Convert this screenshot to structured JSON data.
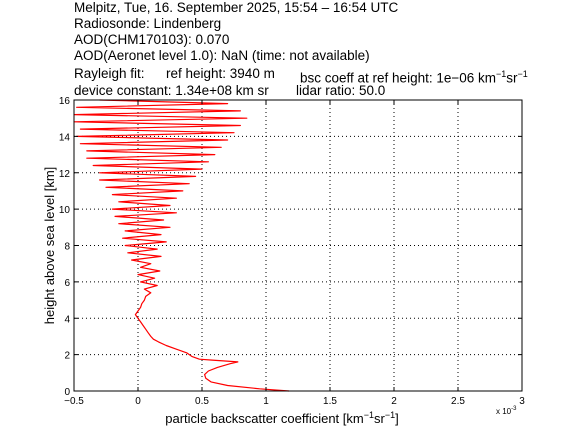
{
  "header": {
    "line1": "Melpitz, Tue, 16. September 2025, 15:54 – 16:54 UTC",
    "line2": "Radiosonde: Lindenberg",
    "line3": "AOD(CHM170103): 0.070",
    "line4": "AOD(Aeronet level 1.0): NaN   (time: not available)",
    "rayleigh_label": "Rayleigh fit:",
    "ref_height": "ref height: 3940 m",
    "bsc_coeff": "bsc coeff at ref height: 1e−06 km",
    "device_constant": "device constant: 1.34e+08 km sr",
    "lidar_ratio": "lidar ratio: 50.0"
  },
  "chart_data": {
    "type": "line",
    "xlabel": "particle backscatter coefficient [km",
    "ylabel": "height above sea level [km]",
    "x_multiplier": "x 10",
    "x_multiplier_exp": "-3",
    "xlim": [
      -0.5,
      3
    ],
    "ylim": [
      0,
      16
    ],
    "xticks": [
      -0.5,
      0,
      0.5,
      1,
      1.5,
      2,
      2.5,
      3
    ],
    "xtick_labels": [
      "−0.5",
      "0",
      "0.5",
      "1",
      "1.5",
      "2",
      "2.5",
      "3"
    ],
    "yticks": [
      0,
      2,
      4,
      6,
      8,
      10,
      12,
      14,
      16
    ],
    "ytick_labels": [
      "0",
      "2",
      "4",
      "6",
      "8",
      "10",
      "12",
      "14",
      "16"
    ],
    "grid": true,
    "series": [
      {
        "color": "#ff0000",
        "points": [
          [
            1.18,
            0.0
          ],
          [
            0.95,
            0.12
          ],
          [
            0.7,
            0.3
          ],
          [
            0.57,
            0.5
          ],
          [
            0.53,
            0.7
          ],
          [
            0.52,
            0.9
          ],
          [
            0.55,
            1.1
          ],
          [
            0.62,
            1.3
          ],
          [
            0.72,
            1.5
          ],
          [
            0.78,
            1.6
          ],
          [
            0.58,
            1.7
          ],
          [
            0.48,
            1.75
          ],
          [
            0.42,
            1.9
          ],
          [
            0.38,
            2.1
          ],
          [
            0.3,
            2.3
          ],
          [
            0.22,
            2.5
          ],
          [
            0.16,
            2.7
          ],
          [
            0.12,
            2.85
          ],
          [
            0.1,
            3.0
          ],
          [
            0.08,
            3.2
          ],
          [
            0.06,
            3.4
          ],
          [
            0.04,
            3.6
          ],
          [
            0.02,
            3.8
          ],
          [
            0.0,
            4.0
          ],
          [
            -0.02,
            4.2
          ],
          [
            0.0,
            4.4
          ],
          [
            0.02,
            4.6
          ],
          [
            0.03,
            4.8
          ],
          [
            0.05,
            5.0
          ],
          [
            0.06,
            5.2
          ],
          [
            0.1,
            5.4
          ],
          [
            0.05,
            5.6
          ],
          [
            0.15,
            5.8
          ],
          [
            0.02,
            6.0
          ],
          [
            0.13,
            6.2
          ],
          [
            0.0,
            6.4
          ],
          [
            0.17,
            6.6
          ],
          [
            0.02,
            6.8
          ],
          [
            0.1,
            7.0
          ],
          [
            -0.05,
            7.2
          ],
          [
            0.18,
            7.4
          ],
          [
            -0.08,
            7.6
          ],
          [
            0.15,
            7.8
          ],
          [
            -0.1,
            8.0
          ],
          [
            0.22,
            8.2
          ],
          [
            -0.12,
            8.4
          ],
          [
            0.18,
            8.6
          ],
          [
            -0.1,
            8.8
          ],
          [
            0.25,
            9.0
          ],
          [
            -0.15,
            9.2
          ],
          [
            0.2,
            9.4
          ],
          [
            -0.18,
            9.6
          ],
          [
            0.3,
            9.8
          ],
          [
            -0.2,
            10.0
          ],
          [
            0.25,
            10.2
          ],
          [
            -0.15,
            10.4
          ],
          [
            0.3,
            10.6
          ],
          [
            -0.2,
            10.8
          ],
          [
            0.35,
            11.0
          ],
          [
            -0.25,
            11.2
          ],
          [
            0.4,
            11.4
          ],
          [
            -0.3,
            11.6
          ],
          [
            0.45,
            11.8
          ],
          [
            -0.3,
            12.0
          ],
          [
            0.5,
            12.2
          ],
          [
            -0.35,
            12.4
          ],
          [
            0.55,
            12.6
          ],
          [
            -0.4,
            12.8
          ],
          [
            0.6,
            13.0
          ],
          [
            -0.4,
            13.2
          ],
          [
            0.65,
            13.4
          ],
          [
            -0.45,
            13.6
          ],
          [
            0.7,
            13.8
          ],
          [
            -0.48,
            14.0
          ],
          [
            0.75,
            14.2
          ],
          [
            -0.45,
            14.4
          ],
          [
            0.8,
            14.6
          ],
          [
            -0.5,
            14.8
          ],
          [
            0.85,
            15.0
          ],
          [
            -0.5,
            15.2
          ],
          [
            0.8,
            15.4
          ],
          [
            -0.48,
            15.6
          ],
          [
            0.7,
            15.8
          ],
          [
            -0.3,
            16.0
          ]
        ]
      }
    ]
  }
}
